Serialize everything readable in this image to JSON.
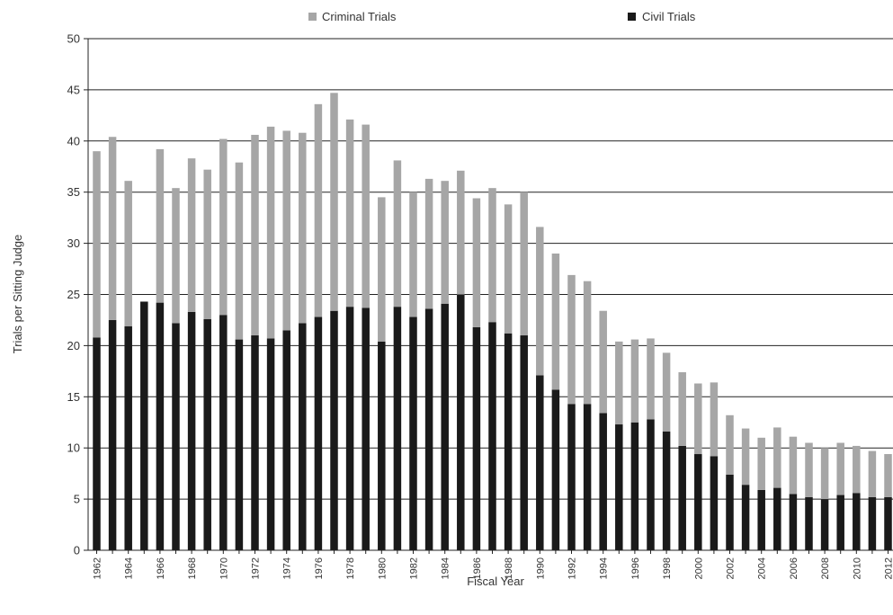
{
  "chart_data": {
    "type": "bar",
    "stacked": true,
    "xlabel": "Fiscal Year",
    "ylabel": "Trials per Sitting Judge",
    "ylim": [
      0,
      50
    ],
    "yticks": [
      0,
      5,
      10,
      15,
      20,
      25,
      30,
      35,
      40,
      45,
      50
    ],
    "grid": true,
    "legend_position": "top",
    "categories": [
      "1962",
      "1963",
      "1964",
      "1965",
      "1966",
      "1967",
      "1968",
      "1969",
      "1970",
      "1971",
      "1972",
      "1973",
      "1974",
      "1975",
      "1976",
      "1977",
      "1978",
      "1979",
      "1980",
      "1981",
      "1982",
      "1983",
      "1984",
      "1985",
      "1986",
      "1987",
      "1988",
      "1989",
      "1990",
      "1991",
      "1992",
      "1993",
      "1994",
      "1995",
      "1996",
      "1997",
      "1998",
      "1999",
      "2000",
      "2001",
      "2002",
      "2003",
      "2004",
      "2005",
      "2006",
      "2007",
      "2008",
      "2009",
      "2010",
      "2011",
      "2012"
    ],
    "tick_labels": [
      "1962",
      "1964",
      "1966",
      "1968",
      "1970",
      "1972",
      "1974",
      "1976",
      "1978",
      "1980",
      "1982",
      "1984",
      "1986",
      "1988",
      "1990",
      "1992",
      "1994",
      "1996",
      "1998",
      "2000",
      "2002",
      "2004",
      "2006",
      "2008",
      "2010",
      "2012"
    ],
    "series": [
      {
        "name": "Civil Trials",
        "color": "#1a1a1a",
        "values": [
          20.8,
          22.5,
          21.9,
          24.3,
          24.2,
          22.2,
          23.3,
          22.6,
          23.0,
          20.6,
          21.0,
          20.7,
          21.5,
          22.2,
          22.8,
          23.4,
          23.8,
          23.7,
          20.4,
          23.8,
          22.8,
          23.6,
          24.1,
          25.0,
          21.8,
          22.3,
          21.2,
          21.0,
          17.1,
          15.7,
          14.3,
          14.3,
          13.4,
          12.3,
          12.5,
          12.8,
          11.6,
          10.2,
          9.4,
          9.2,
          7.4,
          6.4,
          5.9,
          6.1,
          5.5,
          5.2,
          5.0,
          5.4,
          5.6,
          5.2,
          5.2
        ]
      },
      {
        "name": "Criminal Trials",
        "color": "#a6a6a6",
        "values": [
          18.2,
          17.9,
          14.2,
          0.0,
          15.0,
          13.2,
          15.0,
          14.6,
          17.2,
          17.3,
          19.6,
          20.7,
          19.5,
          18.6,
          20.8,
          21.3,
          18.3,
          17.9,
          14.1,
          14.3,
          12.2,
          12.7,
          12.0,
          12.1,
          12.6,
          13.1,
          12.6,
          14.0,
          14.5,
          13.3,
          12.6,
          12.0,
          10.0,
          8.1,
          8.1,
          7.9,
          7.7,
          7.2,
          6.9,
          7.2,
          5.8,
          5.5,
          5.1,
          5.9,
          5.6,
          5.3,
          5.0,
          5.1,
          4.6,
          4.5,
          4.2
        ]
      }
    ]
  }
}
